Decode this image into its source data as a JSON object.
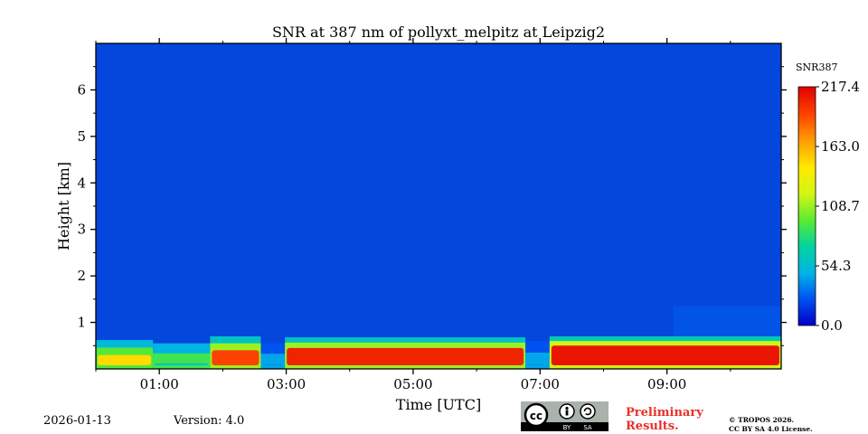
{
  "chart_data": {
    "type": "heatmap",
    "title": "SNR at 387 nm of pollyxt_melpitz at Leipzig2",
    "xlabel": "Time [UTC]",
    "ylabel": "Height [km]",
    "x_range_hours": [
      0.0,
      10.8
    ],
    "ylim": [
      0,
      7
    ],
    "x_tick_hours": [
      1,
      3,
      5,
      7,
      9
    ],
    "x_tick_labels": [
      "01:00",
      "03:00",
      "05:00",
      "07:00",
      "09:00"
    ],
    "y_ticks": [
      1,
      2,
      3,
      4,
      5,
      6
    ],
    "y_tick_labels": [
      "1",
      "2",
      "3",
      "4",
      "5",
      "6"
    ],
    "colorbar": {
      "label": "SNR387",
      "min": 0.0,
      "max": 217.4,
      "ticks": [
        0.0,
        54.3,
        108.7,
        163.0,
        217.4
      ],
      "tick_labels": [
        "0.0",
        "54.3",
        "108.7",
        "163.0",
        "217.4"
      ],
      "colormap": [
        "#0000c8",
        "#0050f0",
        "#00b4e6",
        "#00d2a0",
        "#5aeb32",
        "#d2f514",
        "#ffeb00",
        "#ffa000",
        "#ff4600",
        "#e10000"
      ]
    },
    "background_color": "#0546dc",
    "snr_profile": [
      {
        "time_start": 0.0,
        "time_end": 0.9,
        "top_km": 0.62,
        "core_km": 0.3,
        "core_snr": 150,
        "base_snr": 95
      },
      {
        "time_start": 0.9,
        "time_end": 1.8,
        "top_km": 0.55,
        "core_km": 0.12,
        "core_snr": 60,
        "base_snr": 90
      },
      {
        "time_start": 1.8,
        "time_end": 2.6,
        "top_km": 0.7,
        "core_km": 0.4,
        "core_snr": 195,
        "base_snr": 110
      },
      {
        "time_start": 2.6,
        "time_end": 2.98,
        "top_km": 0.55,
        "core_km": 0.1,
        "core_snr": 40,
        "base_snr": 45
      },
      {
        "time_start": 2.98,
        "time_end": 6.77,
        "top_km": 0.68,
        "core_km": 0.45,
        "core_snr": 205,
        "base_snr": 110
      },
      {
        "time_start": 6.77,
        "time_end": 7.15,
        "top_km": 0.6,
        "core_km": 0.1,
        "core_snr": 40,
        "base_snr": 45
      },
      {
        "time_start": 7.15,
        "time_end": 10.8,
        "top_km": 0.7,
        "core_km": 0.5,
        "core_snr": 210,
        "base_snr": 120
      }
    ],
    "high_noise_region": {
      "time_start": 9.1,
      "time_end": 10.8,
      "top_km": 1.35,
      "snr": 28
    }
  },
  "footer": {
    "date": "2026-01-13",
    "version": "Version: 4.0",
    "preliminary_line1": "Preliminary",
    "preliminary_line2": "Results.",
    "license_line1": "© TROPOS 2026.",
    "license_line2": "CC BY SA 4.0 License.",
    "badge_text_by": "BY",
    "badge_text_sa": "SA",
    "badge_text_cc": "cc"
  }
}
